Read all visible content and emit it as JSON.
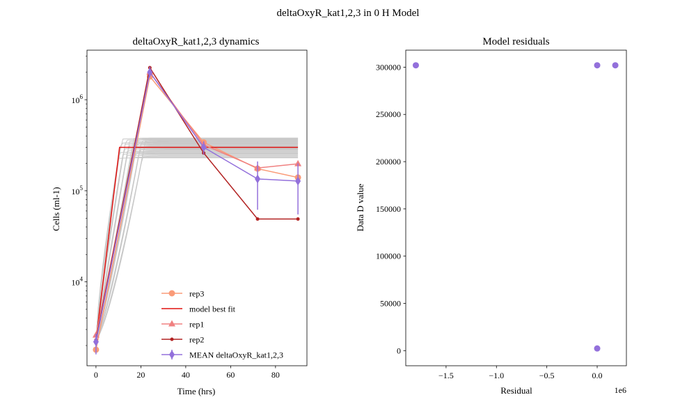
{
  "suptitle": "deltaOxyR_kat1,2,3 in 0 H Model",
  "chart_data": [
    {
      "type": "line",
      "title": "deltaOxyR_kat1,2,3 dynamics",
      "xlabel": "Time (hrs)",
      "ylabel": "Cells (ml-1)",
      "yscale": "log",
      "xlim": [
        -4,
        94
      ],
      "ylim": [
        1200,
        3500000
      ],
      "xticks": [
        0,
        20,
        40,
        60,
        80
      ],
      "yticks": [
        {
          "value": 10000,
          "base": "10",
          "exp": "4"
        },
        {
          "value": 100000,
          "base": "10",
          "exp": "5"
        },
        {
          "value": 1000000,
          "base": "10",
          "exp": "6"
        }
      ],
      "legend_position": "lower center",
      "ensemble": {
        "color": "#c8c8c8",
        "count": 30,
        "initial": 2300,
        "plateau_range": [
          230000,
          380000
        ],
        "rise_end_range": [
          10,
          22
        ]
      },
      "series": [
        {
          "name": "rep3",
          "color": "#fa9b78",
          "marker": "circle",
          "x": [
            0,
            24,
            48,
            72,
            90
          ],
          "y": [
            1800,
            1800000,
            340000,
            175000,
            140000
          ]
        },
        {
          "name": " model best fit",
          "color": "#e0110f",
          "marker": "none",
          "x": [
            0,
            10.5,
            90
          ],
          "y": [
            2300,
            300000,
            300000
          ]
        },
        {
          "name": "rep1",
          "color": "#f08080",
          "marker": "triangle",
          "x": [
            0,
            24,
            48,
            72,
            90
          ],
          "y": [
            2600,
            2000000,
            320000,
            178000,
            198000
          ]
        },
        {
          "name": "rep2",
          "color": "#b22222",
          "marker": "dot",
          "x": [
            0,
            24,
            48,
            72,
            90
          ],
          "y": [
            2300,
            2250000,
            260000,
            49000,
            49000
          ]
        },
        {
          "name": "MEAN deltaOxyR_kat1,2,3",
          "color": "#9370db",
          "marker": "diamond",
          "x": [
            0,
            24,
            48,
            72,
            90
          ],
          "y": [
            2200,
            2000000,
            300000,
            135000,
            128000
          ],
          "err_low": [
            1600,
            1750000,
            250000,
            62000,
            55000
          ],
          "err_high": [
            2700,
            2300000,
            350000,
            210000,
            200000
          ]
        }
      ]
    },
    {
      "type": "scatter",
      "title": "Model residuals",
      "xlabel": "Residual",
      "ylabel": "Data D value",
      "xlim": [
        -1.9,
        0.29
      ],
      "ylim": [
        -16000,
        318000
      ],
      "xticks": [
        -1.5,
        -1.0,
        -0.5,
        0.0
      ],
      "xtick_labels": [
        "−1.5",
        "−1.0",
        "−0.5",
        "0.0"
      ],
      "yticks": [
        0,
        50000,
        100000,
        150000,
        200000,
        250000,
        300000
      ],
      "x_offset_label": "1e6",
      "color": "#9370db",
      "x": [
        -1.8,
        0.0,
        0.18,
        0.0
      ],
      "y": [
        302000,
        302000,
        302000,
        2300
      ]
    }
  ]
}
